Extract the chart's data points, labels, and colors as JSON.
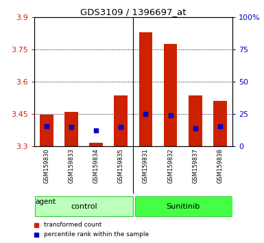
{
  "title": "GDS3109 / 1396697_at",
  "samples": [
    "GSM159830",
    "GSM159833",
    "GSM159834",
    "GSM159835",
    "GSM159831",
    "GSM159832",
    "GSM159837",
    "GSM159838"
  ],
  "bar_bottom": 3.3,
  "bar_tops": [
    3.445,
    3.46,
    3.315,
    3.535,
    3.83,
    3.775,
    3.535,
    3.51
  ],
  "blue_positions": [
    3.393,
    3.388,
    3.372,
    3.388,
    3.45,
    3.443,
    3.383,
    3.393
  ],
  "ylim_left": [
    3.3,
    3.9
  ],
  "yticks_left": [
    3.3,
    3.45,
    3.6,
    3.75,
    3.9
  ],
  "ytick_labels_left": [
    "3.3",
    "3.45",
    "3.6",
    "3.75",
    "3.9"
  ],
  "ylim_right": [
    0,
    100
  ],
  "yticks_right": [
    0,
    25,
    50,
    75,
    100
  ],
  "ytick_labels_right": [
    "0",
    "25",
    "50",
    "75",
    "100%"
  ],
  "bar_color": "#CC2200",
  "blue_color": "#0000CC",
  "background_color": "#ffffff",
  "legend_red_label": "transformed count",
  "legend_blue_label": "percentile rank within the sample",
  "agent_label": "agent",
  "control_label": "control",
  "sunitinib_label": "Sunitinib",
  "control_bg": "#BBFFBB",
  "sunitinib_bg": "#44FF44",
  "sample_area_bg": "#D0D0D0",
  "bar_width": 0.55,
  "blue_marker_size": 5,
  "n_control": 4,
  "n_sunitinib": 4
}
